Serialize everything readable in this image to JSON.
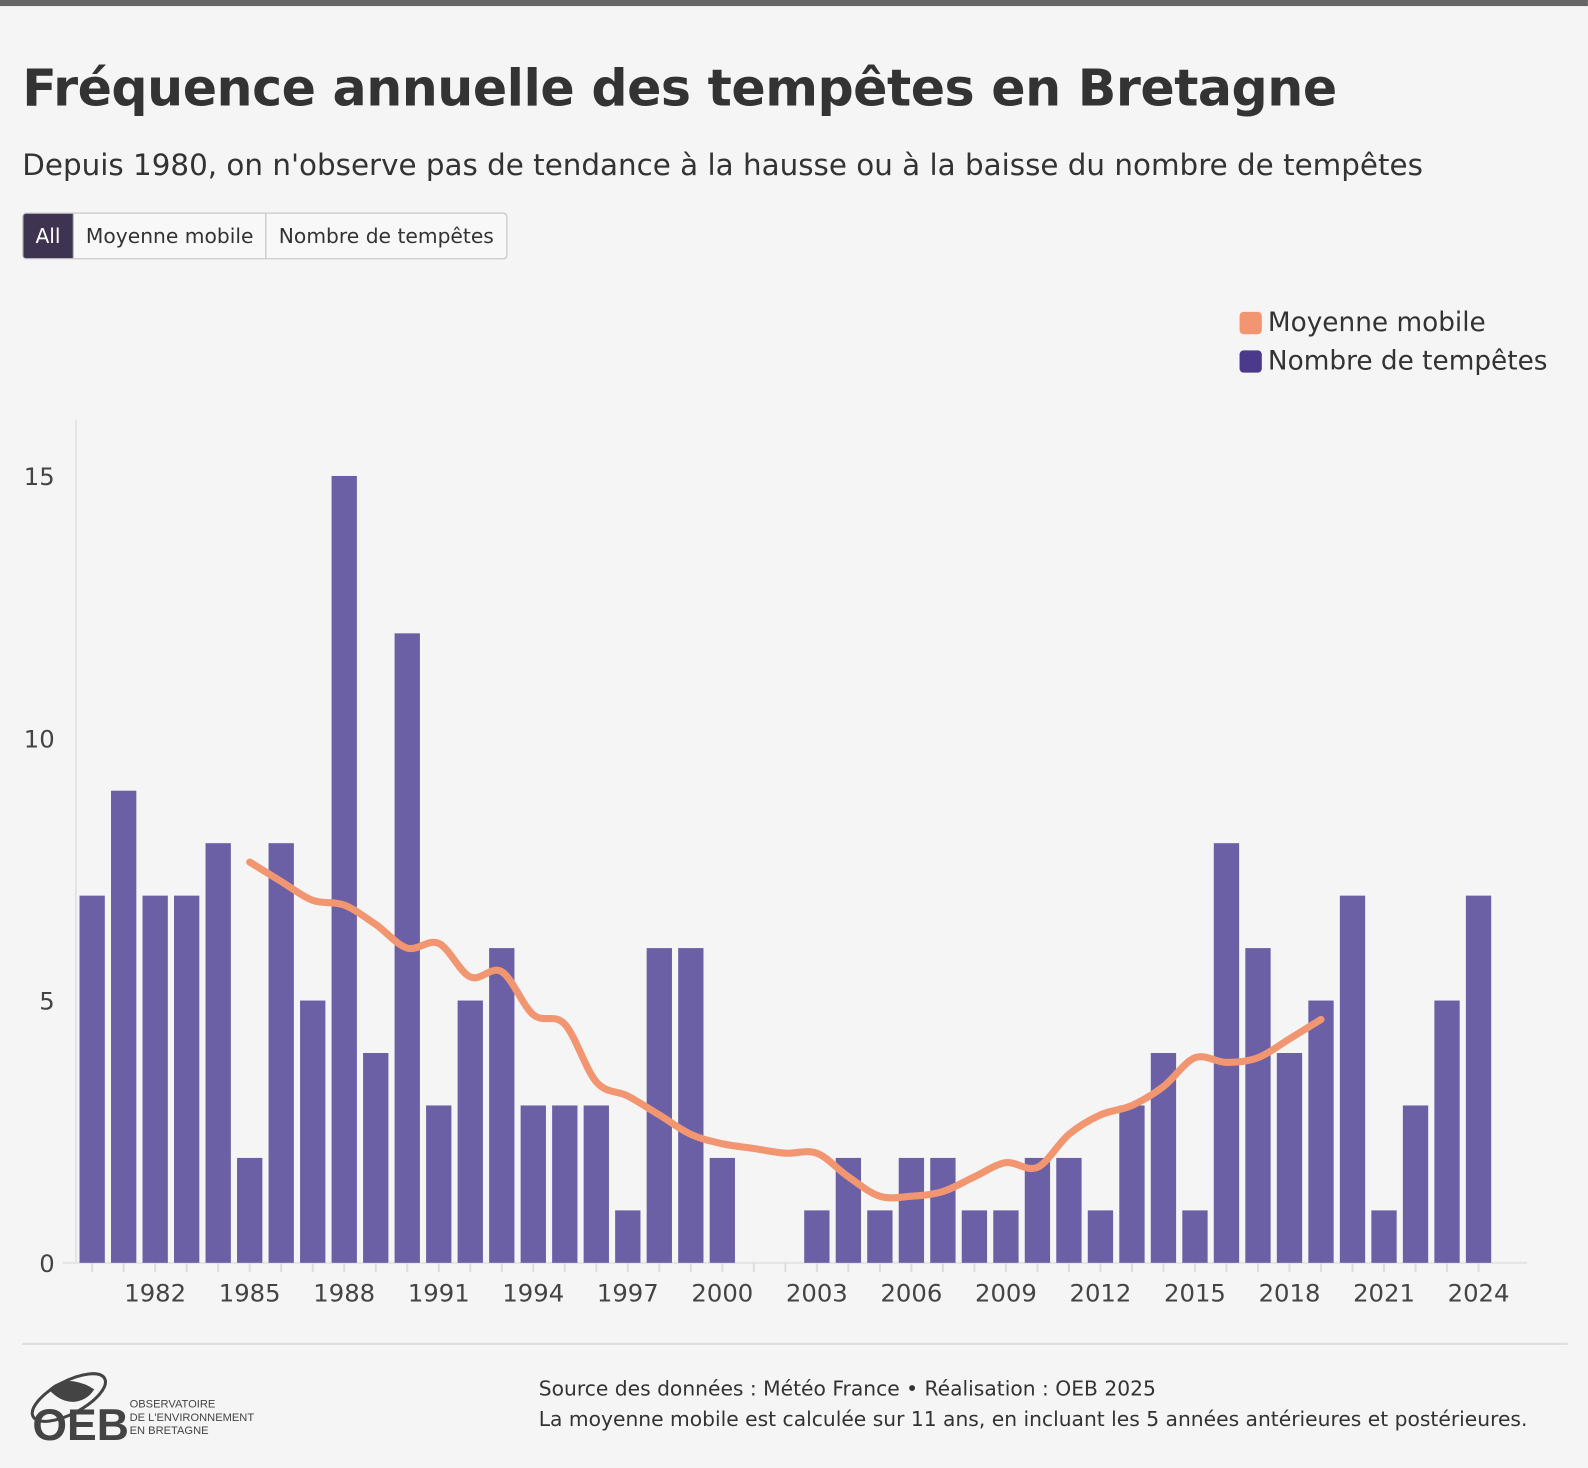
{
  "title": "Fréquence annuelle des tempêtes en Bretagne",
  "subtitle": "Depuis 1980, on n'observe pas de tendance à la hausse ou à la baisse du nombre de tempêtes",
  "filters": [
    {
      "label": "All",
      "active": true
    },
    {
      "label": "Moyenne mobile",
      "active": false
    },
    {
      "label": "Nombre de tempêtes",
      "active": false
    }
  ],
  "colors": {
    "bars": "#6b5fa5",
    "line": "#f29672",
    "legend_bars": "#4b3a8c",
    "active_button": "#3e3350"
  },
  "footer": {
    "source": "Source des données : Météo France • Réalisation : OEB 2025",
    "note": "La moyenne mobile est calculée sur 11 ans, en incluant les 5 années antérieures et postérieures."
  },
  "logo": {
    "acronym": "OEB",
    "line1": "OBSERVATOIRE",
    "line2": "DE L'ENVIRONNEMENT",
    "line3": "EN BRETAGNE"
  },
  "chart_data": {
    "type": "bar",
    "title": "Fréquence annuelle des tempêtes en Bretagne",
    "legend": [
      "Moyenne mobile",
      "Nombre de tempêtes"
    ],
    "legend_position": "top-right",
    "x": [
      1980,
      1981,
      1982,
      1983,
      1984,
      1985,
      1986,
      1987,
      1988,
      1989,
      1990,
      1991,
      1992,
      1993,
      1994,
      1995,
      1996,
      1997,
      1998,
      1999,
      2000,
      2001,
      2002,
      2003,
      2004,
      2005,
      2006,
      2007,
      2008,
      2009,
      2010,
      2011,
      2012,
      2013,
      2014,
      2015,
      2016,
      2017,
      2018,
      2019,
      2020,
      2021,
      2022,
      2023,
      2024
    ],
    "x_ticks": [
      1982,
      1985,
      1988,
      1991,
      1994,
      1997,
      2000,
      2003,
      2006,
      2009,
      2012,
      2015,
      2018,
      2021,
      2024
    ],
    "y_ticks": [
      0,
      5,
      10,
      15
    ],
    "ylim": [
      0,
      16
    ],
    "series": [
      {
        "name": "Nombre de tempêtes",
        "type": "bar",
        "values": [
          7,
          9,
          7,
          7,
          8,
          2,
          8,
          5,
          15,
          4,
          12,
          3,
          5,
          6,
          3,
          3,
          3,
          1,
          6,
          6,
          2,
          0,
          0,
          1,
          2,
          1,
          2,
          2,
          1,
          1,
          2,
          2,
          1,
          3,
          4,
          1,
          8,
          6,
          4,
          5,
          7,
          1,
          3,
          5,
          7
        ]
      },
      {
        "name": "Moyenne mobile",
        "type": "line",
        "x": [
          1985,
          1986,
          1987,
          1988,
          1989,
          1990,
          1991,
          1992,
          1993,
          1994,
          1995,
          1996,
          1997,
          1998,
          1999,
          2000,
          2001,
          2002,
          2003,
          2004,
          2005,
          2006,
          2007,
          2008,
          2009,
          2010,
          2011,
          2012,
          2013,
          2014,
          2015,
          2016,
          2017,
          2018,
          2019
        ],
        "values": [
          7.64,
          7.27,
          6.91,
          6.82,
          6.45,
          6.0,
          6.09,
          5.45,
          5.55,
          4.73,
          4.55,
          3.45,
          3.18,
          2.82,
          2.45,
          2.27,
          2.18,
          2.09,
          2.09,
          1.64,
          1.27,
          1.27,
          1.36,
          1.64,
          1.91,
          1.82,
          2.45,
          2.82,
          3.0,
          3.36,
          3.91,
          3.82,
          3.91,
          4.27,
          4.64
        ]
      }
    ]
  }
}
